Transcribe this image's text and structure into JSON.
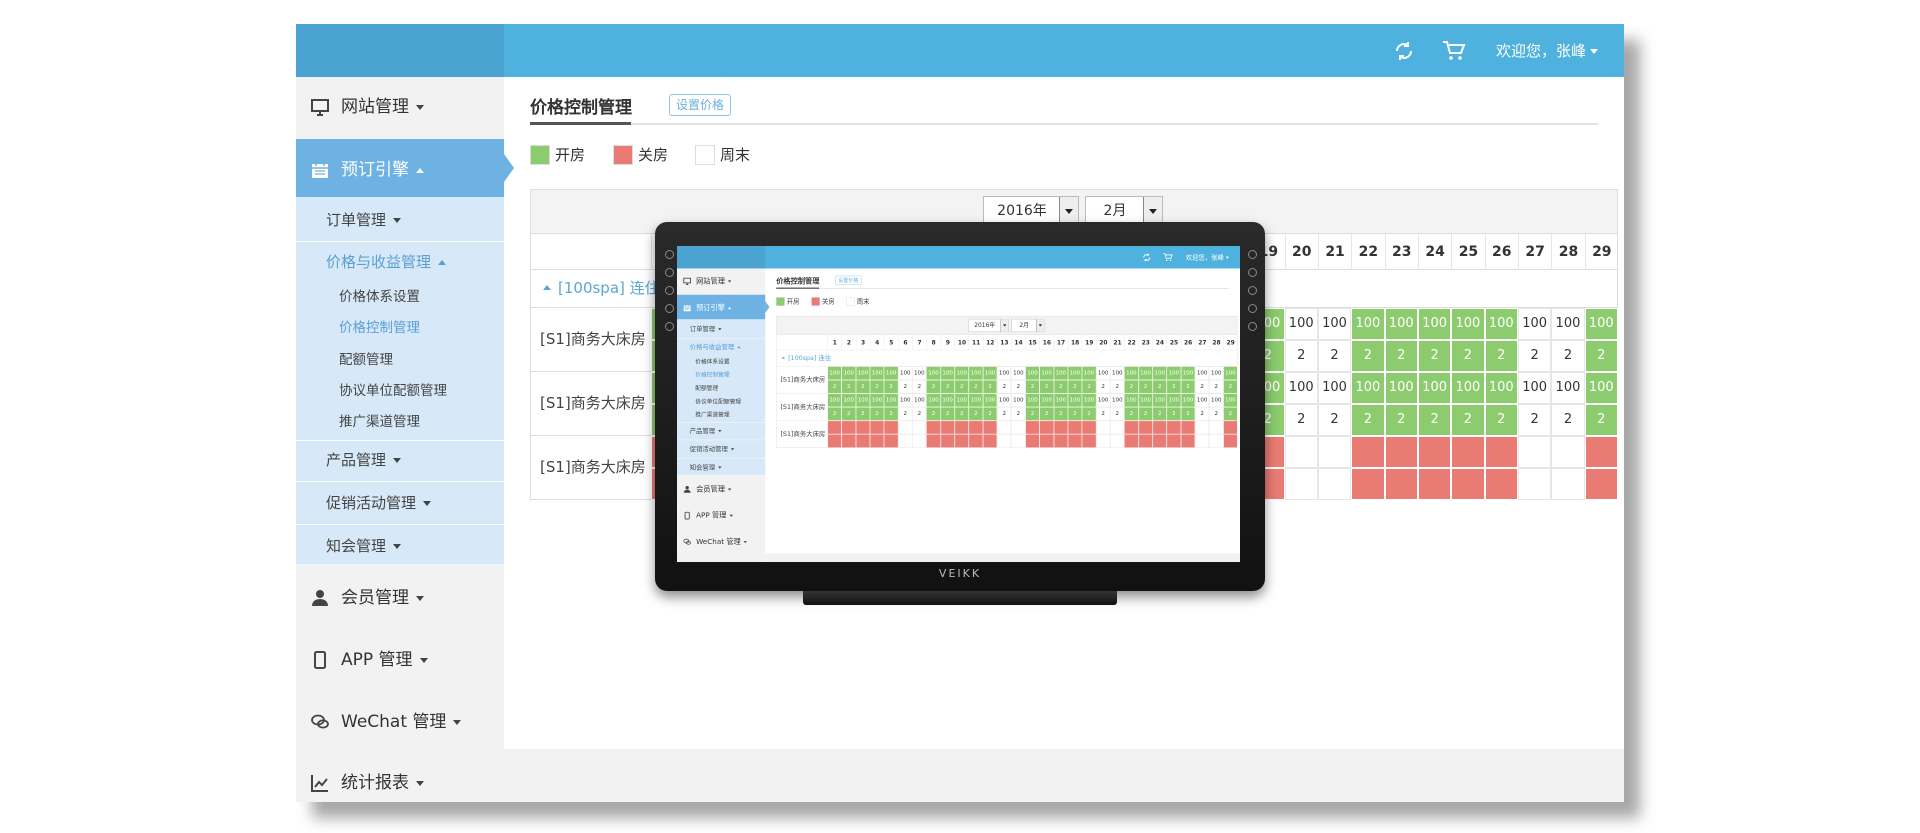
{
  "header": {
    "greeting": "欢迎您，张峰"
  },
  "sidebar": {
    "items": [
      "网站管理",
      "预订引擎",
      "会员管理",
      "APP 管理",
      "WeChat 管理",
      "统计报表"
    ],
    "sub": [
      "订单管理",
      "价格与收益管理",
      "产品管理",
      "促销活动管理",
      "知会管理"
    ],
    "subsub": [
      "价格体系设置",
      "价格控制管理",
      "配额管理",
      "协议单位配额管理",
      "推广渠道管理"
    ]
  },
  "page": {
    "title": "价格控制管理",
    "button": "设置价格",
    "legend": [
      {
        "label": "开房",
        "color": "#8ccb6e"
      },
      {
        "label": "关房",
        "color": "#ea7b74"
      },
      {
        "label": "周末",
        "color": "#ffffff"
      }
    ],
    "year": "2016年",
    "month": "2月",
    "days": [
      1,
      2,
      3,
      4,
      5,
      6,
      7,
      8,
      9,
      10,
      11,
      12,
      13,
      14,
      15,
      16,
      17,
      18,
      19,
      20,
      21,
      22,
      23,
      24,
      25,
      26,
      27,
      28,
      29
    ],
    "group": "[100spa] 连住",
    "rooms": [
      {
        "name": "[S1]商务大床房",
        "status": [
          "开房",
          "开房",
          "开房",
          "开房",
          "开房",
          "周末",
          "周末",
          "开房",
          "开房",
          "开房",
          "开房",
          "开房",
          "周末",
          "周末",
          "开房",
          "开房",
          "开房",
          "开房",
          "开房",
          "周末",
          "周末",
          "开房",
          "开房",
          "开房",
          "开房",
          "开房",
          "周末",
          "周末",
          "开房"
        ],
        "prices": [
          100,
          100,
          100,
          100,
          100,
          100,
          100,
          100,
          100,
          100,
          100,
          100,
          100,
          100,
          100,
          100,
          100,
          100,
          100,
          100,
          100,
          100,
          100,
          100,
          100,
          100,
          100,
          100,
          100
        ],
        "counts": [
          2,
          2,
          2,
          2,
          2,
          2,
          2,
          2,
          2,
          2,
          2,
          2,
          2,
          2,
          2,
          2,
          2,
          2,
          2,
          2,
          2,
          2,
          2,
          2,
          2,
          2,
          2,
          2,
          2
        ]
      },
      {
        "name": "[S1]商务大床房",
        "status": [
          "开房",
          "开房",
          "开房",
          "开房",
          "开房",
          "周末",
          "周末",
          "开房",
          "开房",
          "开房",
          "开房",
          "开房",
          "周末",
          "周末",
          "开房",
          "开房",
          "开房",
          "开房",
          "开房",
          "周末",
          "周末",
          "开房",
          "开房",
          "开房",
          "开房",
          "开房",
          "周末",
          "周末",
          "开房"
        ],
        "prices": [
          100,
          100,
          100,
          100,
          100,
          100,
          100,
          100,
          100,
          100,
          100,
          100,
          100,
          100,
          100,
          100,
          100,
          100,
          100,
          100,
          100,
          100,
          100,
          100,
          100,
          100,
          100,
          100,
          100
        ],
        "counts": [
          2,
          2,
          2,
          2,
          2,
          2,
          2,
          2,
          2,
          2,
          2,
          2,
          2,
          2,
          2,
          2,
          2,
          2,
          2,
          2,
          2,
          2,
          2,
          2,
          2,
          2,
          2,
          2,
          2
        ]
      },
      {
        "name": "[S1]商务大床房",
        "status": [
          "关房",
          "关房",
          "关房",
          "关房",
          "关房",
          "周末",
          "周末",
          "关房",
          "关房",
          "关房",
          "关房",
          "关房",
          "周末",
          "周末",
          "关房",
          "关房",
          "关房",
          "关房",
          "关房",
          "周末",
          "周末",
          "关房",
          "关房",
          "关房",
          "关房",
          "关房",
          "周末",
          "周末",
          "关房"
        ]
      }
    ]
  },
  "device": {
    "brand": "VEIKK"
  }
}
